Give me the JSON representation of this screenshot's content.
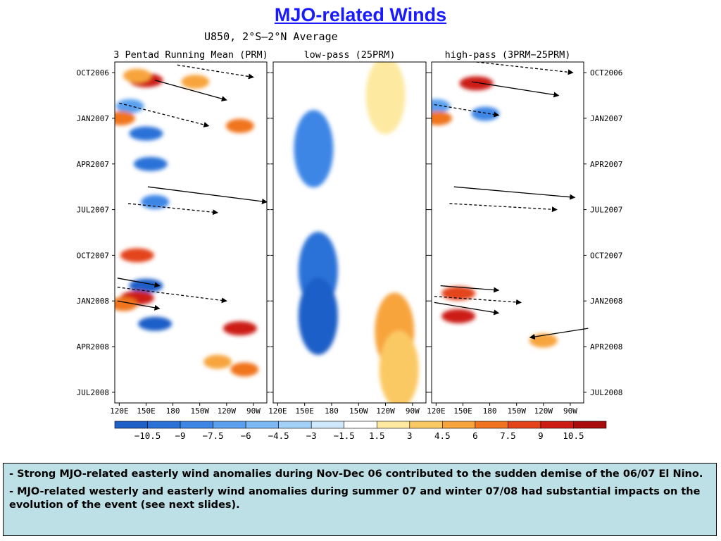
{
  "slide": {
    "title": "MJO-related Winds",
    "notes": [
      {
        "dash": "- ",
        "text": "Strong MJO-related easterly wind anomalies during Nov-Dec 06 contributed to the sudden demise of the 06/07 El Nino."
      },
      {
        "dash": "- ",
        "text": "MJO-related westerly and easterly wind anomalies during summer 07 and winter 07/08 had substantial  impacts on the evolution of the event (see next slides)."
      }
    ]
  },
  "chart_data": {
    "type": "heatmap",
    "title": "U850, 2°S–2°N Average",
    "panels": [
      {
        "title": "3 Pentad Running Mean (PRM)"
      },
      {
        "title": "low-pass (25PRM)"
      },
      {
        "title": "high-pass (3PRM−25PRM)"
      }
    ],
    "x_ticks": [
      "120E",
      "150E",
      "180",
      "150W",
      "120W",
      "90W"
    ],
    "x_values": [
      120,
      150,
      180,
      210,
      240,
      270
    ],
    "xlim": [
      115,
      285
    ],
    "y_ticks": [
      "OCT2006",
      "JAN2007",
      "APR2007",
      "JUL2007",
      "OCT2007",
      "JAN2008",
      "APR2008",
      "JUL2008"
    ],
    "y_values_month_index": [
      0,
      3,
      6,
      9,
      12,
      15,
      18,
      21
    ],
    "ylim_month_index": [
      -0.7,
      21.7
    ],
    "colorbar": {
      "labels": [
        "−10.5",
        "−9",
        "−7.5",
        "−6",
        "−4.5",
        "−3",
        "−1.5",
        "1.5",
        "3",
        "4.5",
        "6",
        "7.5",
        "9",
        "10.5"
      ],
      "colors": [
        "#1e5fc8",
        "#2a72d8",
        "#3c86e6",
        "#5aa0ef",
        "#7cb8f4",
        "#a3d0f7",
        "#cfe8fb",
        "#ffffff",
        "#fde9a0",
        "#fbc964",
        "#f7a43c",
        "#f0741e",
        "#e3441a",
        "#cc1c14",
        "#a80c0c"
      ]
    },
    "anomalies": [
      {
        "panel": 0,
        "lon": 150,
        "t": 0.5,
        "v": 10.5
      },
      {
        "panel": 0,
        "lon": 140,
        "t": 0.2,
        "v": 6
      },
      {
        "panel": 0,
        "lon": 205,
        "t": 0.6,
        "v": 6
      },
      {
        "panel": 0,
        "lon": 132,
        "t": 2.2,
        "v": -6
      },
      {
        "panel": 0,
        "lon": 122,
        "t": 3.0,
        "v": 7.5
      },
      {
        "panel": 0,
        "lon": 150,
        "t": 4.0,
        "v": -9
      },
      {
        "panel": 0,
        "lon": 155,
        "t": 6.0,
        "v": -9
      },
      {
        "panel": 0,
        "lon": 160,
        "t": 8.5,
        "v": -7.5
      },
      {
        "panel": 0,
        "lon": 140,
        "t": 12.0,
        "v": 9
      },
      {
        "panel": 0,
        "lon": 150,
        "t": 14.0,
        "v": -10.5
      },
      {
        "panel": 0,
        "lon": 140,
        "t": 14.8,
        "v": 10.5
      },
      {
        "panel": 0,
        "lon": 125,
        "t": 15.2,
        "v": 7.5
      },
      {
        "panel": 0,
        "lon": 160,
        "t": 16.5,
        "v": -10.5
      },
      {
        "panel": 0,
        "lon": 255,
        "t": 16.8,
        "v": 10.5
      },
      {
        "panel": 0,
        "lon": 230,
        "t": 19.0,
        "v": 6
      },
      {
        "panel": 0,
        "lon": 260,
        "t": 19.5,
        "v": 7.5
      },
      {
        "panel": 0,
        "lon": 255,
        "t": 3.5,
        "v": 7.5
      },
      {
        "panel": 1,
        "lon": 160,
        "t": 5.0,
        "v": -7.5
      },
      {
        "panel": 1,
        "lon": 165,
        "t": 13.0,
        "v": -9
      },
      {
        "panel": 1,
        "lon": 165,
        "t": 16.0,
        "v": -10.5
      },
      {
        "panel": 1,
        "lon": 240,
        "t": 1.5,
        "v": 3
      },
      {
        "panel": 1,
        "lon": 250,
        "t": 17.0,
        "v": 6
      },
      {
        "panel": 1,
        "lon": 255,
        "t": 19.5,
        "v": 4.5
      },
      {
        "panel": 2,
        "lon": 165,
        "t": 0.7,
        "v": 10.5
      },
      {
        "panel": 2,
        "lon": 175,
        "t": 2.7,
        "v": -7.5
      },
      {
        "panel": 2,
        "lon": 120,
        "t": 2.2,
        "v": -6
      },
      {
        "panel": 2,
        "lon": 122,
        "t": 3.0,
        "v": 7.5
      },
      {
        "panel": 2,
        "lon": 145,
        "t": 14.5,
        "v": 9
      },
      {
        "panel": 2,
        "lon": 145,
        "t": 16.0,
        "v": 10.5
      },
      {
        "panel": 2,
        "lon": 240,
        "t": 17.6,
        "v": 6
      }
    ],
    "arrows": [
      {
        "panel": 0,
        "lon0": 185,
        "t0": -0.5,
        "lon1": 270,
        "t1": 0.3,
        "dashed": true
      },
      {
        "panel": 0,
        "lon0": 160,
        "t0": 0.5,
        "lon1": 240,
        "t1": 1.8,
        "dashed": false
      },
      {
        "panel": 0,
        "lon0": 120,
        "t0": 2.0,
        "lon1": 220,
        "t1": 3.5,
        "dashed": true
      },
      {
        "panel": 0,
        "lon0": 152,
        "t0": 7.5,
        "lon1": 285,
        "t1": 8.5,
        "dashed": false
      },
      {
        "panel": 0,
        "lon0": 130,
        "t0": 8.6,
        "lon1": 230,
        "t1": 9.2,
        "dashed": true
      },
      {
        "panel": 0,
        "lon0": 118,
        "t0": 13.5,
        "lon1": 165,
        "t1": 14.0,
        "dashed": false
      },
      {
        "panel": 0,
        "lon0": 118,
        "t0": 14.1,
        "lon1": 240,
        "t1": 15.0,
        "dashed": true
      },
      {
        "panel": 0,
        "lon0": 118,
        "t0": 15.0,
        "lon1": 165,
        "t1": 15.5,
        "dashed": false
      },
      {
        "panel": 2,
        "lon0": 165,
        "t0": -0.7,
        "lon1": 273,
        "t1": 0.0,
        "dashed": true
      },
      {
        "panel": 2,
        "lon0": 160,
        "t0": 0.6,
        "lon1": 257,
        "t1": 1.5,
        "dashed": false
      },
      {
        "panel": 2,
        "lon0": 118,
        "t0": 2.1,
        "lon1": 190,
        "t1": 2.8,
        "dashed": true
      },
      {
        "panel": 2,
        "lon0": 140,
        "t0": 7.5,
        "lon1": 275,
        "t1": 8.2,
        "dashed": false
      },
      {
        "panel": 2,
        "lon0": 135,
        "t0": 8.6,
        "lon1": 255,
        "t1": 9.0,
        "dashed": true
      },
      {
        "panel": 2,
        "lon0": 125,
        "t0": 14.0,
        "lon1": 190,
        "t1": 14.3,
        "dashed": false
      },
      {
        "panel": 2,
        "lon0": 118,
        "t0": 14.7,
        "lon1": 215,
        "t1": 15.1,
        "dashed": true
      },
      {
        "panel": 2,
        "lon0": 118,
        "t0": 15.1,
        "lon1": 190,
        "t1": 15.8,
        "dashed": false
      },
      {
        "panel": 2,
        "lon0": 290,
        "t0": 16.8,
        "lon1": 225,
        "t1": 17.4,
        "dashed": false
      }
    ]
  }
}
